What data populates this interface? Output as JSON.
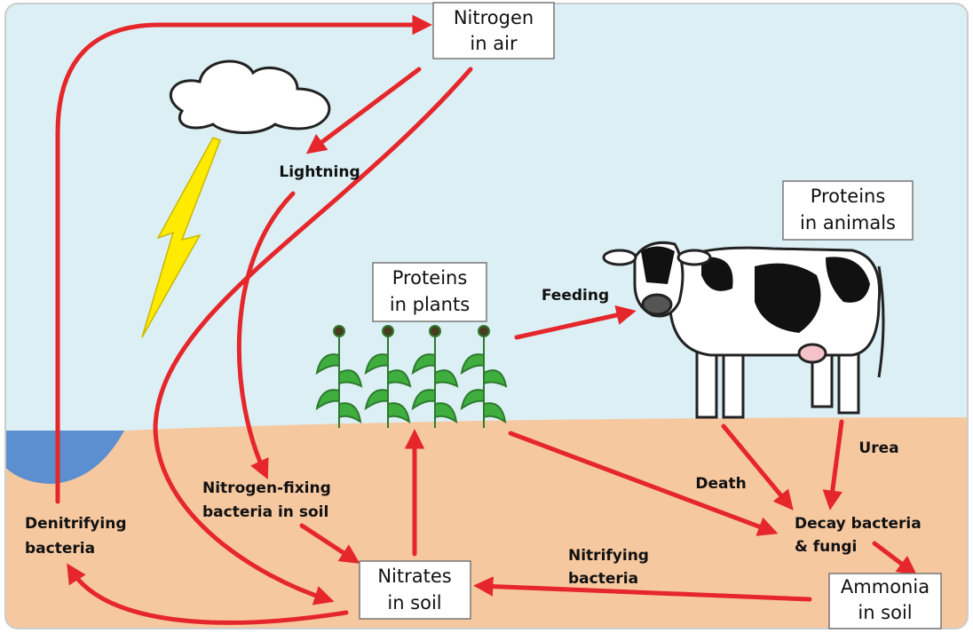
{
  "boxes": [
    {
      "lines": [
        "Nitrogen",
        "in air"
      ]
    },
    {
      "lines": [
        "Proteins",
        "in animals"
      ]
    },
    {
      "lines": [
        "Proteins",
        "in plants"
      ]
    },
    {
      "lines": [
        "Nitrates",
        "in soil"
      ]
    },
    {
      "lines": [
        "Ammonia",
        "in soil"
      ]
    }
  ],
  "labels": [
    {
      "lines": [
        "Lightning"
      ]
    },
    {
      "lines": [
        "Feeding"
      ]
    },
    {
      "lines": [
        "Urea"
      ]
    },
    {
      "lines": [
        "Death"
      ]
    },
    {
      "lines": [
        "Decay bacteria",
        "& fungi"
      ]
    },
    {
      "lines": [
        "Nitrogen-fixing",
        "bacteria in soil"
      ]
    },
    {
      "lines": [
        "Denitrifying",
        "bacteria"
      ]
    },
    {
      "lines": [
        "Nitrifying",
        "bacteria"
      ]
    }
  ]
}
